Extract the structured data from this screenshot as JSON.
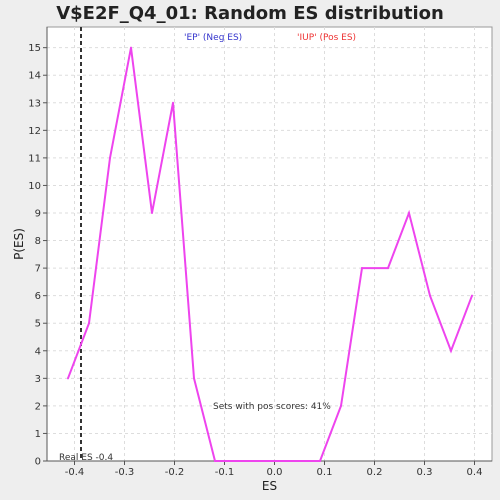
{
  "chart_data": {
    "type": "line",
    "title": "V$E2F_Q4_01: Random ES distribution",
    "xlabel": "ES",
    "ylabel": "P(ES)",
    "xlim": [
      -0.455,
      0.435
    ],
    "ylim": [
      0,
      15.75
    ],
    "x_ticks": [
      "-0.4",
      "-0.3",
      "-0.2",
      "-0.1",
      "0.0",
      "0.1",
      "0.2",
      "0.3",
      "0.4"
    ],
    "x_tick_values": [
      -0.4,
      -0.3,
      -0.2,
      -0.1,
      0.0,
      0.1,
      0.2,
      0.3,
      0.4
    ],
    "y_ticks": [
      "0",
      "1",
      "2",
      "3",
      "4",
      "5",
      "6",
      "7",
      "8",
      "9",
      "10",
      "11",
      "12",
      "13",
      "14",
      "15"
    ],
    "y_tick_values": [
      0,
      1,
      2,
      3,
      4,
      5,
      6,
      7,
      8,
      9,
      10,
      11,
      12,
      13,
      14,
      15
    ],
    "grid": true,
    "series": [
      {
        "color": "#ee44ee",
        "x": [
          -0.413,
          -0.371,
          -0.329,
          -0.287,
          -0.245,
          -0.203,
          -0.161,
          -0.119,
          -0.077,
          -0.035,
          0.007,
          0.049,
          0.091,
          0.133,
          0.175,
          0.227,
          0.269,
          0.311,
          0.353,
          0.395
        ],
        "y": [
          3,
          5,
          11,
          15,
          9,
          13,
          3,
          0,
          0,
          0,
          0,
          0,
          0,
          2,
          7,
          7,
          9,
          6,
          4,
          6
        ]
      }
    ],
    "real_es": -0.387,
    "real_es_label": "Real ES -0.4",
    "legend": [
      {
        "text": "'EP' (Neg ES)",
        "color": "#3333cc"
      },
      {
        "text": "'IUP' (Pos ES)",
        "color": "#ee3333"
      }
    ],
    "annotation": "Sets with pos scores: 41%"
  }
}
